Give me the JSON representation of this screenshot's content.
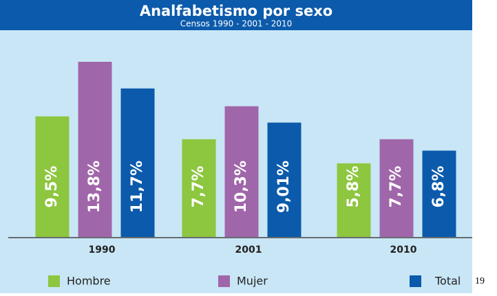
{
  "chart_data": {
    "type": "bar",
    "title": "Analfabetismo por sexo",
    "subtitle": "Censos 1990 - 2001 - 2010",
    "categories": [
      "1990",
      "2001",
      "2010"
    ],
    "series": [
      {
        "name": "Hombre",
        "color": "#8dc63f",
        "values": [
          9.5,
          7.7,
          5.8
        ],
        "value_labels": [
          "9,5%",
          "7,7%",
          "5,8%"
        ]
      },
      {
        "name": "Mujer",
        "color": "#a066aa",
        "values": [
          13.8,
          10.3,
          7.7
        ],
        "value_labels": [
          "13,8%",
          "10,3%",
          "7,7%"
        ]
      },
      {
        "name": "Total",
        "color": "#0b5aab",
        "values": [
          11.7,
          9.01,
          6.8
        ],
        "value_labels": [
          "11,7%",
          "9,01%",
          "6,8%"
        ]
      }
    ],
    "annotation": "19"
  }
}
